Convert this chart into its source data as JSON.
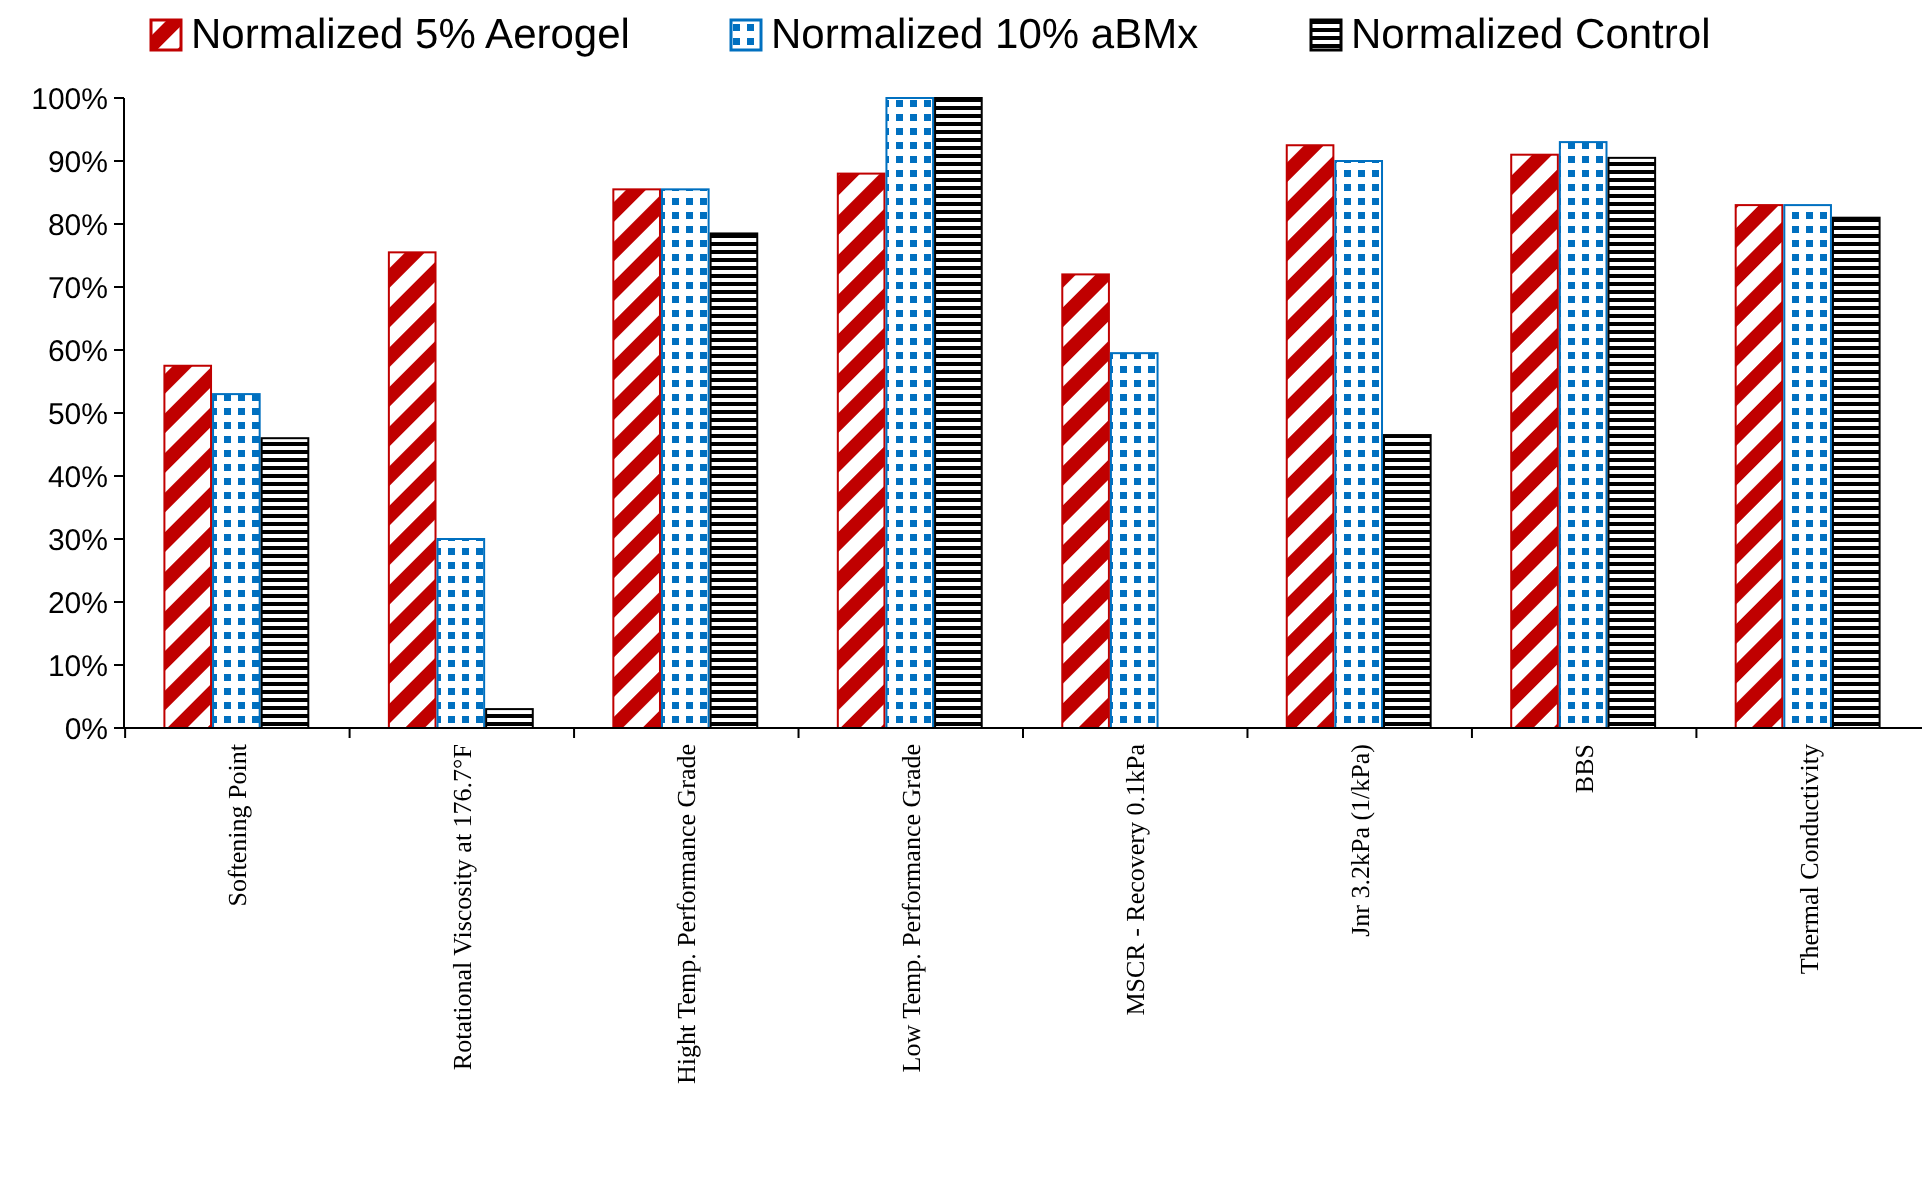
{
  "chart_data": {
    "type": "bar",
    "categories": [
      "Softening Point",
      "Rotational Viscosity  at 176.7°F",
      "Hight Temp. Performance Grade",
      "Low Temp. Performance Grade",
      "MSCR - Recovery 0.1kPa",
      "Jnr 3.2kPa (1/kPa)",
      "BBS",
      "Thermal Conductivity"
    ],
    "series": [
      {
        "name": "Normalized 5% Aerogel",
        "color": "#c00000",
        "values": [
          57.5,
          75.5,
          85.5,
          88,
          72,
          92.5,
          91,
          83
        ]
      },
      {
        "name": "Normalized 10% aBMx",
        "color": "#0070c0",
        "values": [
          53,
          30,
          85.5,
          100,
          59.5,
          90,
          93,
          83
        ]
      },
      {
        "name": "Normalized Control",
        "color": "#000000",
        "values": [
          46,
          3,
          78.5,
          100,
          0,
          46.5,
          90.5,
          81
        ]
      }
    ],
    "ylim": [
      0,
      100
    ],
    "yticks": [
      {
        "value": 0,
        "label": "0%"
      },
      {
        "value": 10,
        "label": "10%"
      },
      {
        "value": 20,
        "label": "20%"
      },
      {
        "value": 30,
        "label": "30%"
      },
      {
        "value": 40,
        "label": "40%"
      },
      {
        "value": 50,
        "label": "50%"
      },
      {
        "value": 60,
        "label": "60%"
      },
      {
        "value": 70,
        "label": "70%"
      },
      {
        "value": 80,
        "label": "80%"
      },
      {
        "value": 90,
        "label": "90%"
      },
      {
        "value": 100,
        "label": "100%"
      }
    ],
    "grid": false,
    "legend": "top"
  }
}
